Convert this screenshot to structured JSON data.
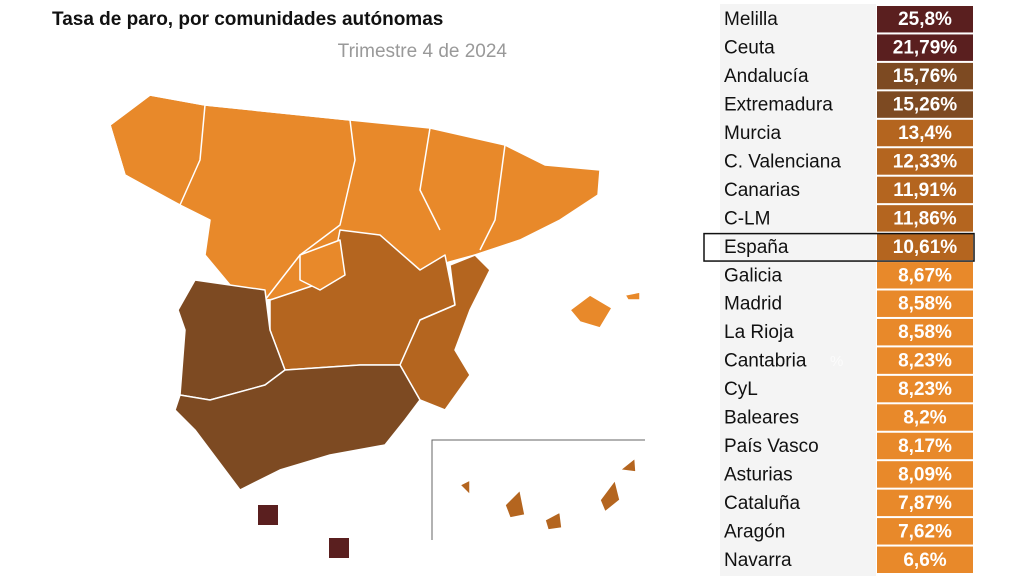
{
  "header": {
    "title": "Tasa de paro, por comunidades autónomas",
    "subtitle": "Trimestre 4 de 2024"
  },
  "stray_label": "%",
  "table": {
    "highlight": "España",
    "rows": [
      {
        "name": "Melilla",
        "value": "25,8%",
        "color": "#5a1f1f"
      },
      {
        "name": "Ceuta",
        "value": "21,79%",
        "color": "#5a1f1f"
      },
      {
        "name": "Andalucía",
        "value": "15,76%",
        "color": "#7d4a22"
      },
      {
        "name": "Extremadura",
        "value": "15,26%",
        "color": "#7d4a22"
      },
      {
        "name": "Murcia",
        "value": "13,4%",
        "color": "#b4651f"
      },
      {
        "name": "C. Valenciana",
        "value": "12,33%",
        "color": "#b4651f"
      },
      {
        "name": "Canarias",
        "value": "11,91%",
        "color": "#b4651f"
      },
      {
        "name": "C-LM",
        "value": "11,86%",
        "color": "#b4651f"
      },
      {
        "name": "España",
        "value": "10,61%",
        "color": "#b4651f"
      },
      {
        "name": "Galicia",
        "value": "8,67%",
        "color": "#e8892a"
      },
      {
        "name": "Madrid",
        "value": "8,58%",
        "color": "#e8892a"
      },
      {
        "name": "La Rioja",
        "value": "8,58%",
        "color": "#e8892a"
      },
      {
        "name": "Cantabria",
        "value": "8,23%",
        "color": "#e8892a"
      },
      {
        "name": "CyL",
        "value": "8,23%",
        "color": "#e8892a"
      },
      {
        "name": "Baleares",
        "value": "8,2%",
        "color": "#e8892a"
      },
      {
        "name": "País Vasco",
        "value": "8,17%",
        "color": "#e8892a"
      },
      {
        "name": "Asturias",
        "value": "8,09%",
        "color": "#e8892a"
      },
      {
        "name": "Cataluña",
        "value": "7,87%",
        "color": "#e8892a"
      },
      {
        "name": "Aragón",
        "value": "7,62%",
        "color": "#e8892a"
      },
      {
        "name": "Navarra",
        "value": "6,6%",
        "color": "#e8892a"
      }
    ]
  }
}
